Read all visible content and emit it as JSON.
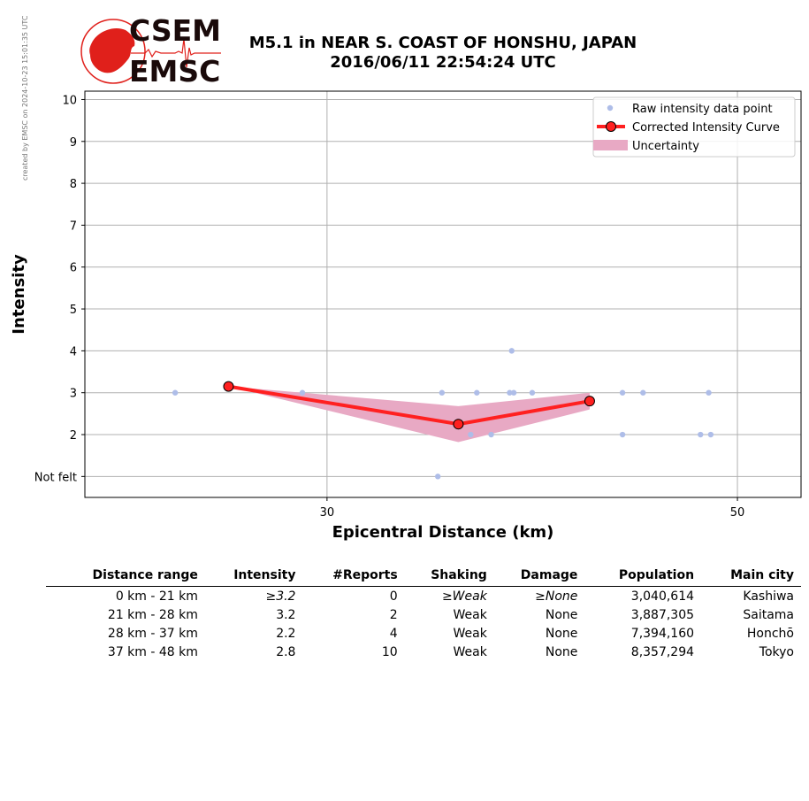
{
  "watermark": "created by EMSC on 2024-10-23 15:01:35 UTC",
  "logo": {
    "line1": "CSEM",
    "line2": "EMSC",
    "color": "#e0201b"
  },
  "title": {
    "line1": "M5.1 in NEAR S. COAST OF HONSHU, JAPAN",
    "line2": "2016/06/11 22:54:24 UTC"
  },
  "chart_data": {
    "type": "scatter",
    "xlabel": "Epicentral Distance (km)",
    "ylabel": "Intensity",
    "xlim": [
      18.2,
      53.1
    ],
    "ylim": [
      0.5,
      10.2
    ],
    "x_ticks": [
      30,
      50
    ],
    "x_tick_labels": [
      "30",
      "50"
    ],
    "y_ticks": [
      1,
      2,
      3,
      4,
      5,
      6,
      7,
      8,
      9,
      10
    ],
    "y_tick_labels": [
      "Not felt",
      "2",
      "3",
      "4",
      "5",
      "6",
      "7",
      "8",
      "9",
      "10"
    ],
    "grid": true,
    "legend_position": "top-right",
    "series": [
      {
        "name": "Raw intensity data point",
        "kind": "points",
        "color": "#aebde8",
        "x": [
          22.6,
          28.8,
          35.4,
          35.6,
          37.0,
          37.3,
          38.0,
          38.9,
          39.0,
          39.1,
          40.0,
          44.4,
          44.4,
          45.4,
          48.2,
          48.6,
          48.7
        ],
        "y": [
          3,
          3,
          1,
          3,
          2,
          3,
          2,
          3,
          4,
          3,
          3,
          3,
          2,
          3,
          2,
          3,
          2
        ]
      },
      {
        "name": "Corrected Intensity Curve",
        "kind": "line",
        "color": "#ff2020",
        "x": [
          25.2,
          36.4,
          42.8
        ],
        "y": [
          3.15,
          2.25,
          2.8
        ]
      },
      {
        "name": "Uncertainty",
        "kind": "band",
        "color": "#e8a9c4",
        "x": [
          25.2,
          36.4,
          42.8
        ],
        "upper": [
          3.15,
          2.68,
          3.0
        ],
        "lower": [
          3.15,
          1.82,
          2.6
        ]
      }
    ]
  },
  "table": {
    "headers": [
      "Distance range",
      "Intensity",
      "#Reports",
      "Shaking",
      "Damage",
      "Population",
      "Main city"
    ],
    "rows": [
      [
        "0 km -   21 km",
        "≥3.2",
        "0",
        "≥Weak",
        "≥None",
        "3,040,614",
        "Kashiwa"
      ],
      [
        "21 km -   28 km",
        "3.2",
        "2",
        "Weak",
        "None",
        "3,887,305",
        "Saitama"
      ],
      [
        "28 km -   37 km",
        "2.2",
        "4",
        "Weak",
        "None",
        "7,394,160",
        "Honchō"
      ],
      [
        "37 km -   48 km",
        "2.8",
        "10",
        "Weak",
        "None",
        "8,357,294",
        "Tokyo"
      ]
    ]
  }
}
